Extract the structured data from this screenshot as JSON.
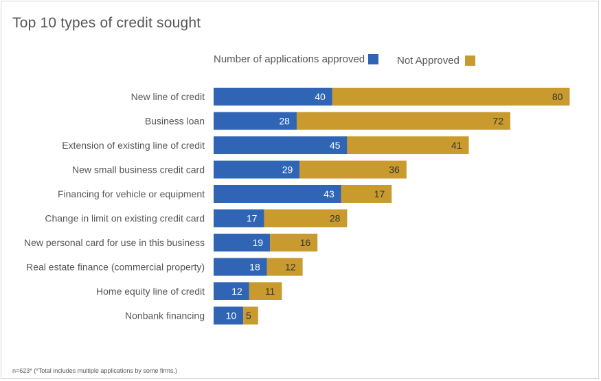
{
  "colors": {
    "approved": "#2f65b4",
    "not_approved": "#c99a2e",
    "label_dark": "#333333",
    "label_light": "#ffffff",
    "text": "#555555"
  },
  "chart_data": {
    "type": "bar",
    "orientation": "horizontal",
    "stacked": true,
    "title": "Top 10 types of credit sought",
    "legend_position": "top",
    "categories": [
      "New line of credit",
      "Business loan",
      "Extension of existing line of credit",
      "New small business credit card",
      "Financing for vehicle or equipment",
      "Change in limit on existing credit card",
      "New personal card for use in this business",
      "Real estate finance (commercial property)",
      "Home equity line of credit",
      "Nonbank financing"
    ],
    "series": [
      {
        "name": "Number of applications approved",
        "values": [
          40,
          28,
          45,
          29,
          43,
          17,
          19,
          18,
          12,
          10
        ]
      },
      {
        "name": "Not Approved",
        "values": [
          80,
          72,
          41,
          36,
          17,
          28,
          16,
          12,
          11,
          5
        ]
      }
    ],
    "grid": false,
    "footnote": "n=623* (*Total includes multiple applications by some firms.)"
  }
}
